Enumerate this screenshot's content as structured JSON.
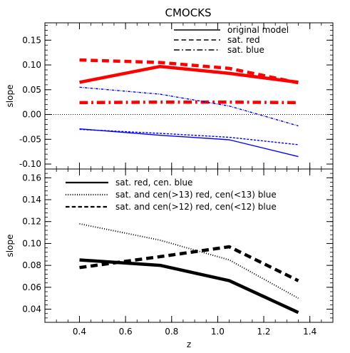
{
  "figure_title": "CMOCKS",
  "chart_data": [
    {
      "type": "line",
      "panel": "top",
      "title": "CMOCKS",
      "xlabel": "",
      "ylabel": "slope",
      "xlim": [
        0.25,
        1.5
      ],
      "ylim": [
        -0.11,
        0.185
      ],
      "yticks": [
        -0.1,
        -0.05,
        0.0,
        0.05,
        0.1,
        0.15
      ],
      "ytick_labels": [
        "-0.10",
        "-0.05",
        "0.00",
        "0.05",
        "0.10",
        "0.15"
      ],
      "xticks": [
        0.4,
        0.6,
        0.8,
        1.0,
        1.2,
        1.4
      ],
      "zero_line": true,
      "legend": {
        "placement": "top-right",
        "entries": [
          {
            "label": "original model",
            "style": "solid"
          },
          {
            "label": "sat. red",
            "style": "dashed"
          },
          {
            "label": "sat. blue",
            "style": "dashdot"
          }
        ]
      },
      "series": [
        {
          "color": "#ff0000",
          "style": "solid",
          "weight": "thick",
          "x": [
            0.4,
            0.75,
            1.05,
            1.35
          ],
          "y": [
            0.065,
            0.097,
            0.083,
            0.065
          ]
        },
        {
          "color": "#ff0000",
          "style": "dashed",
          "weight": "thick",
          "x": [
            0.4,
            0.75,
            1.05,
            1.35
          ],
          "y": [
            0.11,
            0.105,
            0.093,
            0.064
          ]
        },
        {
          "color": "#ff0000",
          "style": "dashdot",
          "weight": "thick",
          "x": [
            0.4,
            0.75,
            1.05,
            1.35
          ],
          "y": [
            0.024,
            0.025,
            0.025,
            0.024
          ]
        },
        {
          "color": "#0000ff",
          "style": "solid",
          "weight": "thin",
          "x": [
            0.4,
            0.75,
            1.05,
            1.35
          ],
          "y": [
            -0.029,
            -0.042,
            -0.051,
            -0.085
          ]
        },
        {
          "color": "#0000ff",
          "style": "dashed",
          "weight": "thin",
          "x": [
            0.4,
            0.75,
            1.05,
            1.35
          ],
          "y": [
            -0.03,
            -0.038,
            -0.046,
            -0.061
          ]
        },
        {
          "color": "#0000ff",
          "style": "dashdot",
          "weight": "thin",
          "x": [
            0.4,
            0.75,
            1.05,
            1.35
          ],
          "y": [
            0.055,
            0.041,
            0.017,
            -0.023
          ]
        }
      ]
    },
    {
      "type": "line",
      "panel": "bottom",
      "title": "",
      "xlabel": "z",
      "ylabel": "slope",
      "xlim": [
        0.25,
        1.5
      ],
      "ylim": [
        0.028,
        0.168
      ],
      "yticks": [
        0.04,
        0.06,
        0.08,
        0.1,
        0.12,
        0.14,
        0.16
      ],
      "ytick_labels": [
        "0.04",
        "0.06",
        "0.08",
        "0.10",
        "0.12",
        "0.14",
        "0.16"
      ],
      "xticks": [
        0.4,
        0.6,
        0.8,
        1.0,
        1.2,
        1.4
      ],
      "xtick_labels": [
        "0.4",
        "0.6",
        "0.8",
        "1.0",
        "1.2",
        "1.4"
      ],
      "legend": {
        "placement": "top-left",
        "entries": [
          {
            "label": "sat. red, cen. blue",
            "style": "solid"
          },
          {
            "label": "sat. and cen(>13) red, cen(<13) blue",
            "style": "dotted"
          },
          {
            "label": "sat. and cen(>12) red, cen(<12) blue",
            "style": "dashed"
          }
        ]
      },
      "series": [
        {
          "color": "#000000",
          "style": "solid",
          "weight": "thick",
          "x": [
            0.4,
            0.75,
            1.05,
            1.35
          ],
          "y": [
            0.085,
            0.08,
            0.066,
            0.037
          ]
        },
        {
          "color": "#000000",
          "style": "dotted",
          "weight": "medium",
          "x": [
            0.4,
            0.75,
            1.05,
            1.35
          ],
          "y": [
            0.118,
            0.103,
            0.085,
            0.05
          ]
        },
        {
          "color": "#000000",
          "style": "dashed",
          "weight": "thick",
          "x": [
            0.4,
            0.75,
            1.05,
            1.35
          ],
          "y": [
            0.078,
            0.088,
            0.097,
            0.066
          ]
        }
      ]
    }
  ]
}
